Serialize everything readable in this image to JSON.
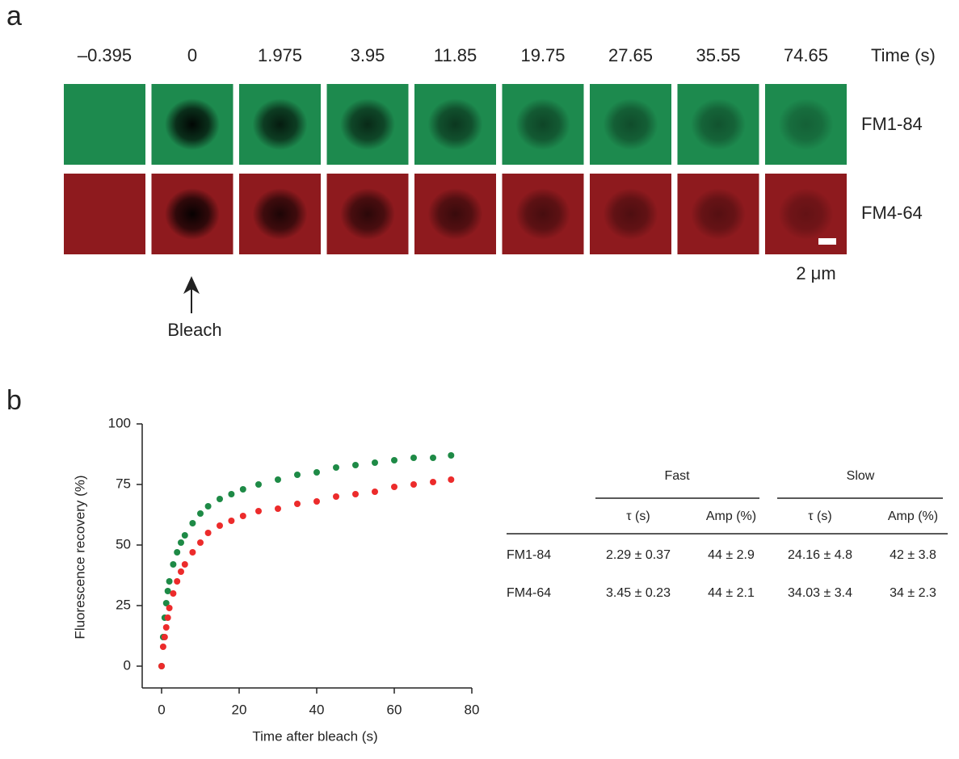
{
  "panel_a": {
    "label": "a",
    "times": [
      "–0.395",
      "0",
      "1.975",
      "3.95",
      "11.85",
      "19.75",
      "27.65",
      "35.55",
      "74.65"
    ],
    "time_label": "Time (s)",
    "rows": [
      "FM1-84",
      "FM4-64"
    ],
    "scale_bar": "2 μm",
    "annotation": "Bleach"
  },
  "panel_b": {
    "label": "b"
  },
  "chart_data": {
    "type": "scatter",
    "x": [
      0,
      0.4,
      0.8,
      1.2,
      1.6,
      2,
      3,
      4,
      5,
      6,
      8,
      10,
      12,
      15,
      18,
      21,
      25,
      30,
      35,
      40,
      45,
      50,
      55,
      60,
      65,
      70,
      74.65
    ],
    "series": [
      {
        "name": "FM1-84",
        "color": "#1e8a46",
        "values": [
          0,
          12,
          20,
          26,
          31,
          35,
          42,
          47,
          51,
          54,
          59,
          63,
          66,
          69,
          71,
          73,
          75,
          77,
          79,
          80,
          82,
          83,
          84,
          85,
          86,
          86,
          87
        ]
      },
      {
        "name": "FM4-64",
        "color": "#ec2b2b",
        "values": [
          0,
          8,
          12,
          16,
          20,
          24,
          30,
          35,
          39,
          42,
          47,
          51,
          55,
          58,
          60,
          62,
          64,
          65,
          67,
          68,
          70,
          71,
          72,
          74,
          75,
          76,
          77
        ]
      }
    ],
    "xlabel": "Time after bleach (s)",
    "ylabel": "Fluorescence recovery (%)",
    "xlim": [
      -5,
      80
    ],
    "ylim": [
      -9,
      100
    ],
    "xticks": [
      0,
      20,
      40,
      60,
      80
    ],
    "yticks": [
      0,
      25,
      50,
      75,
      100
    ]
  },
  "table": {
    "groups": [
      "Fast",
      "Slow"
    ],
    "columns": [
      "τ (s)",
      "Amp (%)",
      "τ (s)",
      "Amp (%)"
    ],
    "rows": [
      [
        "FM1-84",
        "2.29 ± 0.37",
        "44 ± 2.9",
        "24.16 ± 4.8",
        "42 ± 3.8"
      ],
      [
        "FM4-64",
        "3.45 ± 0.23",
        "44 ± 2.1",
        "34.03 ± 3.4",
        "34 ± 2.3"
      ]
    ]
  }
}
